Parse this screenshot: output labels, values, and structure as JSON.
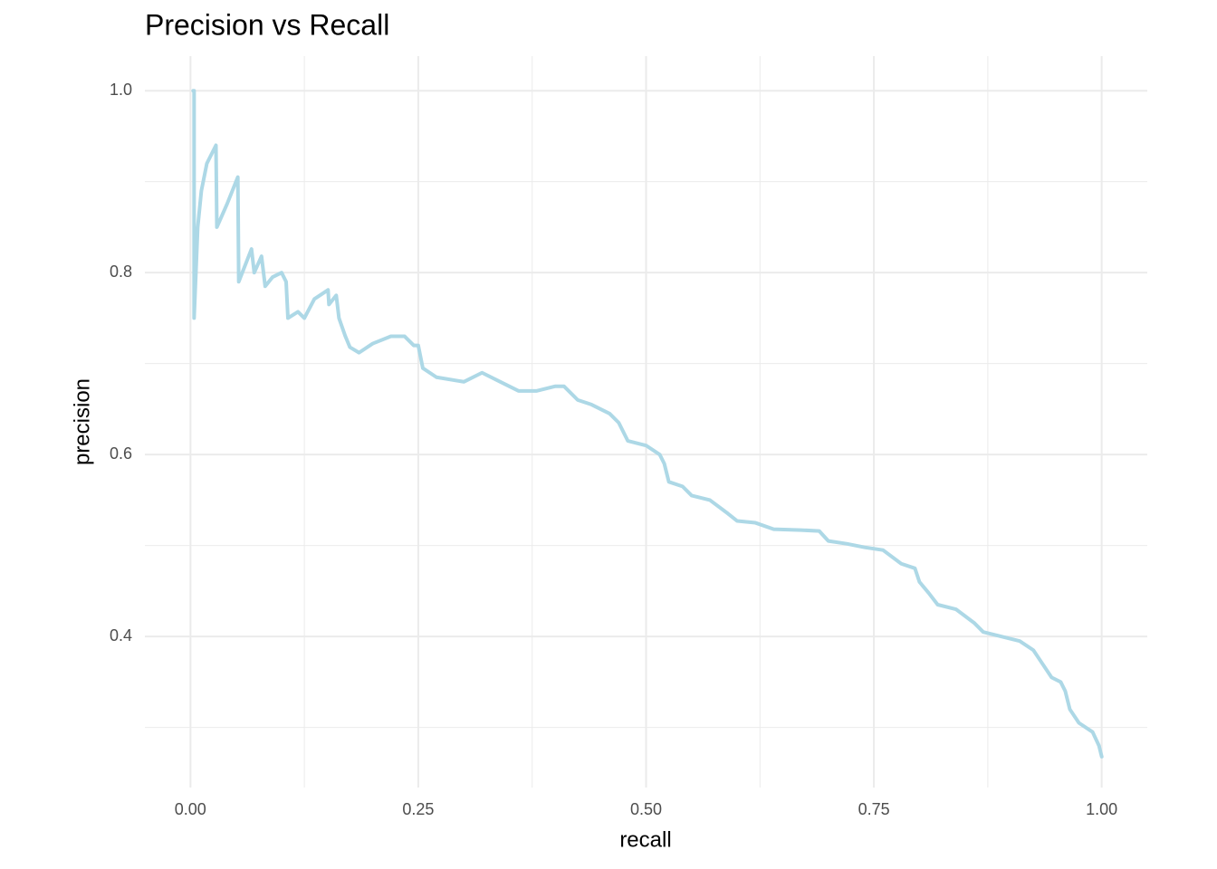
{
  "chart_data": {
    "type": "line",
    "title": "Precision vs Recall",
    "x_label": "recall",
    "y_label": "precision",
    "x": [
      0.003,
      0.004,
      0.004,
      0.008,
      0.012,
      0.018,
      0.028,
      0.029,
      0.04,
      0.052,
      0.053,
      0.067,
      0.07,
      0.078,
      0.082,
      0.09,
      0.1,
      0.105,
      0.107,
      0.118,
      0.125,
      0.136,
      0.151,
      0.152,
      0.16,
      0.163,
      0.17,
      0.175,
      0.185,
      0.2,
      0.22,
      0.235,
      0.245,
      0.25,
      0.255,
      0.27,
      0.3,
      0.32,
      0.34,
      0.36,
      0.38,
      0.4,
      0.41,
      0.425,
      0.44,
      0.46,
      0.47,
      0.48,
      0.5,
      0.515,
      0.52,
      0.525,
      0.54,
      0.55,
      0.57,
      0.59,
      0.6,
      0.62,
      0.64,
      0.67,
      0.69,
      0.7,
      0.72,
      0.74,
      0.76,
      0.78,
      0.795,
      0.8,
      0.81,
      0.82,
      0.84,
      0.86,
      0.87,
      0.89,
      0.91,
      0.925,
      0.935,
      0.945,
      0.955,
      0.96,
      0.965,
      0.975,
      0.99,
      0.997,
      1.0
    ],
    "series": [
      {
        "name": "precision",
        "color": "#add8e6",
        "values": [
          1.0,
          1.0,
          0.75,
          0.85,
          0.89,
          0.92,
          0.94,
          0.85,
          0.875,
          0.905,
          0.79,
          0.826,
          0.8,
          0.818,
          0.785,
          0.795,
          0.8,
          0.79,
          0.75,
          0.757,
          0.75,
          0.771,
          0.781,
          0.765,
          0.775,
          0.75,
          0.73,
          0.718,
          0.712,
          0.722,
          0.73,
          0.73,
          0.72,
          0.72,
          0.695,
          0.685,
          0.68,
          0.69,
          0.68,
          0.67,
          0.67,
          0.675,
          0.675,
          0.66,
          0.655,
          0.645,
          0.635,
          0.615,
          0.61,
          0.6,
          0.59,
          0.57,
          0.565,
          0.555,
          0.55,
          0.535,
          0.527,
          0.525,
          0.518,
          0.517,
          0.516,
          0.505,
          0.502,
          0.498,
          0.495,
          0.48,
          0.475,
          0.46,
          0.448,
          0.435,
          0.43,
          0.415,
          0.405,
          0.4,
          0.395,
          0.385,
          0.37,
          0.355,
          0.35,
          0.34,
          0.32,
          0.305,
          0.295,
          0.28,
          0.268
        ]
      }
    ],
    "xlim": [
      -0.05,
      1.05
    ],
    "ylim": [
      0.234,
      1.038
    ],
    "xticks": [
      {
        "value": 0,
        "label": "0.00"
      },
      0.25,
      {
        "value": 0.5,
        "label": "0.50"
      },
      0.75,
      {
        "value": 1,
        "label": "1.00"
      }
    ],
    "yticks": [
      0.4,
      0.6,
      0.8,
      {
        "value": 1,
        "label": "1.0"
      }
    ],
    "x_minor_ticks": [
      0.125,
      0.375,
      0.625,
      0.875
    ],
    "y_minor_ticks": [
      0.3,
      0.5,
      0.7,
      0.9
    ],
    "grid": true
  }
}
